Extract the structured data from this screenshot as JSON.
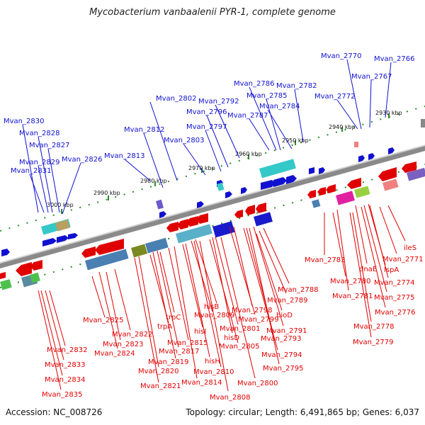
{
  "title": "Mycobacterium vanbaalenii PYR-1, complete genome",
  "footer": {
    "accession": "Accession: NC_008726",
    "topology": "Topology: circular; Length: 6,491,865 bp; Genes: 6,037"
  },
  "colors": {
    "forward": "#1010d0",
    "reverse": "#e00000",
    "backbone": "#888888",
    "ticks": "#2a8a2a"
  },
  "kbp_labels": [
    "2930 kbp",
    "2940 kbp",
    "2950 kbp",
    "2960 kbp",
    "2970 kbp",
    "2980 kbp",
    "2990 kbp",
    "3000 kbp"
  ],
  "forward_genes": [
    "Mvan_2770",
    "Mvan_2766",
    "Mvan_2767",
    "Mvan_2772",
    "Mvan_2786",
    "Mvan_2782",
    "Mvan_2785",
    "Mvan_2802",
    "Mvan_2792",
    "Mvan_2784",
    "Mvan_2796",
    "Mvan_2787",
    "Mvan_2830",
    "Mvan_2812",
    "Mvan_2797",
    "Mvan_2828",
    "Mvan_2803",
    "Mvan_2827",
    "Mvan_2813",
    "Mvan_2826",
    "Mvan_2829",
    "Mvan_2831"
  ],
  "reverse_genes": [
    "ileS",
    "Mvan_2771",
    "Mvan_2783",
    "dnaE",
    "lspA",
    "Mvan_2780",
    "Mvan_2774",
    "Mvan_2788",
    "Mvan_2781",
    "Mvan_2775",
    "Mvan_2789",
    "hisB",
    "Mvan_2798",
    "Mvan_2776",
    "Mvan_2825",
    "trpC",
    "Mvan_2809",
    "Mvan_2799",
    "bioD",
    "trpA",
    "hisI",
    "Mvan_2801",
    "Mvan_2778",
    "Mvan_2822",
    "Mvan_2791",
    "Mvan_2823",
    "hisD",
    "Mvan_2793",
    "Mvan_2779",
    "Mvan_2815",
    "Mvan_2824",
    "Mvan_2817",
    "Mvan_2805",
    "Mvan_2832",
    "Mvan_2794",
    "Mvan_2819",
    "hisH",
    "Mvan_2833",
    "Mvan_2820",
    "Mvan_2810",
    "Mvan_2795",
    "Mvan_2800",
    "Mvan_2834",
    "Mvan_2814",
    "Mvan_2821",
    "Mvan_2808",
    "Mvan_2835"
  ]
}
